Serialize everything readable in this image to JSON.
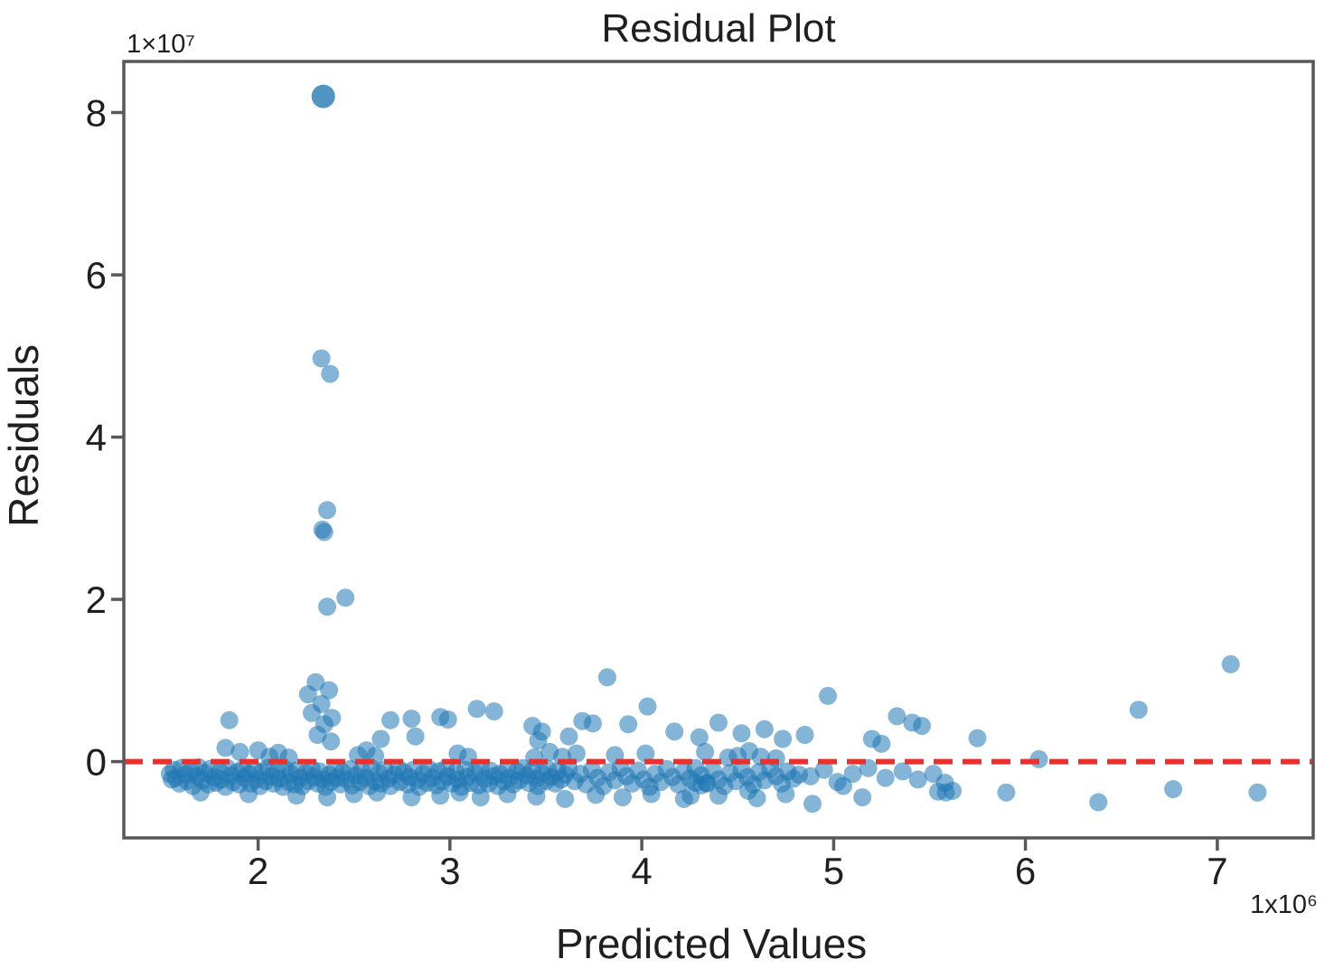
{
  "page": {
    "background": "#ffffff"
  },
  "chart_data": {
    "type": "scatter",
    "title": "Residual Plot",
    "xlabel": "Predicted Values",
    "ylabel": "Residuals",
    "x_scale_note": "1x10⁶",
    "y_scale_note": "1×10⁷",
    "x_ticks": [
      2,
      3,
      4,
      5,
      6,
      7
    ],
    "y_ticks": [
      0,
      2,
      4,
      6,
      8
    ],
    "xlim": [
      1.3,
      7.5
    ],
    "ylim": [
      -0.94,
      8.63
    ],
    "x_unit_multiplier": 1000000,
    "y_unit_multiplier": 10000000,
    "grid": false,
    "legend": "none",
    "point_color": "#1f77b4",
    "point_opacity": 0.55,
    "point_radius": 10,
    "zero_line": {
      "y": 0,
      "color": "#e8322f",
      "style": "dashed",
      "width": 6
    },
    "points": [
      [
        2.34,
        8.2,
        13,
        0.78
      ],
      [
        2.33,
        4.97
      ],
      [
        2.375,
        4.78
      ],
      [
        2.36,
        3.1
      ],
      [
        2.335,
        2.86
      ],
      [
        2.345,
        2.83
      ],
      [
        2.36,
        1.91
      ],
      [
        2.455,
        2.02
      ],
      [
        2.3,
        0.98
      ],
      [
        2.26,
        0.83
      ],
      [
        2.37,
        0.88
      ],
      [
        2.33,
        0.71
      ],
      [
        2.28,
        0.6
      ],
      [
        2.385,
        0.54
      ],
      [
        2.345,
        0.46
      ],
      [
        2.31,
        0.33
      ],
      [
        2.38,
        0.25
      ],
      [
        1.85,
        0.51
      ],
      [
        1.83,
        0.17
      ],
      [
        1.905,
        0.12
      ],
      [
        2.0,
        0.14
      ],
      [
        2.64,
        0.28
      ],
      [
        2.69,
        0.51
      ],
      [
        2.8,
        0.53
      ],
      [
        2.82,
        0.31
      ],
      [
        2.95,
        0.55
      ],
      [
        2.99,
        0.52
      ],
      [
        3.14,
        0.65
      ],
      [
        3.23,
        0.62
      ],
      [
        3.43,
        0.44
      ],
      [
        3.46,
        0.26
      ],
      [
        3.48,
        0.37
      ],
      [
        3.62,
        0.31
      ],
      [
        3.69,
        0.5
      ],
      [
        3.745,
        0.47
      ],
      [
        3.82,
        1.04
      ],
      [
        3.93,
        0.46
      ],
      [
        4.03,
        0.68
      ],
      [
        4.17,
        0.37
      ],
      [
        4.3,
        0.3
      ],
      [
        4.4,
        0.48
      ],
      [
        4.52,
        0.35
      ],
      [
        4.64,
        0.4
      ],
      [
        4.735,
        0.28
      ],
      [
        4.85,
        0.33
      ],
      [
        4.97,
        0.81
      ],
      [
        5.2,
        0.28
      ],
      [
        5.25,
        0.22
      ],
      [
        5.33,
        0.56
      ],
      [
        5.41,
        0.48
      ],
      [
        5.46,
        0.44
      ],
      [
        5.75,
        0.29
      ],
      [
        6.07,
        0.03
      ],
      [
        6.59,
        0.64
      ],
      [
        7.07,
        1.2
      ],
      [
        5.545,
        -0.37
      ],
      [
        5.585,
        -0.38
      ],
      [
        5.62,
        -0.36
      ],
      [
        5.9,
        -0.38
      ],
      [
        6.38,
        -0.5
      ],
      [
        6.77,
        -0.34
      ],
      [
        7.21,
        -0.38
      ],
      [
        3.76,
        -0.41
      ],
      [
        3.9,
        -0.44
      ],
      [
        4.05,
        -0.4
      ],
      [
        4.22,
        -0.46
      ],
      [
        4.255,
        -0.42
      ],
      [
        4.4,
        -0.42
      ],
      [
        4.555,
        -0.36
      ],
      [
        4.6,
        -0.45
      ],
      [
        4.75,
        -0.4
      ],
      [
        4.89,
        -0.52
      ],
      [
        5.05,
        -0.3
      ],
      [
        5.15,
        -0.44
      ],
      [
        4.28,
        -0.26
      ],
      [
        4.31,
        -0.29
      ],
      [
        4.34,
        -0.27
      ],
      [
        1.7,
        -0.38
      ],
      [
        1.95,
        -0.4
      ],
      [
        2.2,
        -0.42
      ],
      [
        2.36,
        -0.44
      ],
      [
        2.5,
        -0.4
      ],
      [
        2.62,
        -0.38
      ],
      [
        2.8,
        -0.44
      ],
      [
        2.95,
        -0.42
      ],
      [
        3.05,
        -0.38
      ],
      [
        3.16,
        -0.44
      ],
      [
        3.3,
        -0.4
      ],
      [
        3.45,
        -0.43
      ],
      [
        3.6,
        -0.46
      ],
      [
        2.06,
        0.06
      ],
      [
        2.105,
        0.11
      ],
      [
        2.16,
        0.05
      ],
      [
        2.52,
        0.08
      ],
      [
        2.565,
        0.14
      ],
      [
        2.61,
        0.07
      ],
      [
        3.04,
        0.1
      ],
      [
        3.095,
        0.06
      ],
      [
        3.44,
        0.05
      ],
      [
        3.52,
        0.12
      ],
      [
        3.585,
        0.06
      ],
      [
        3.66,
        0.1
      ],
      [
        3.86,
        0.08
      ],
      [
        4.02,
        0.1
      ],
      [
        4.33,
        0.12
      ],
      [
        4.45,
        0.05
      ],
      [
        4.5,
        0.07
      ],
      [
        4.56,
        0.13
      ],
      [
        4.62,
        0.06
      ],
      [
        4.7,
        0.04
      ],
      [
        1.54,
        -0.15
      ],
      [
        1.55,
        -0.22
      ],
      [
        1.56,
        -0.1
      ],
      [
        1.57,
        -0.2
      ],
      [
        1.59,
        -0.27
      ],
      [
        1.6,
        -0.08
      ],
      [
        1.62,
        -0.16
      ],
      [
        1.63,
        -0.24
      ],
      [
        1.65,
        -0.11
      ],
      [
        1.66,
        -0.3
      ],
      [
        1.68,
        -0.18
      ],
      [
        1.69,
        -0.07
      ],
      [
        1.71,
        -0.23
      ],
      [
        1.72,
        -0.14
      ],
      [
        1.74,
        -0.28
      ],
      [
        1.75,
        -0.09
      ],
      [
        1.77,
        -0.19
      ],
      [
        1.78,
        -0.26
      ],
      [
        1.8,
        -0.12
      ],
      [
        1.81,
        -0.22
      ],
      [
        1.83,
        -0.31
      ],
      [
        1.84,
        -0.08
      ],
      [
        1.86,
        -0.17
      ],
      [
        1.87,
        -0.25
      ],
      [
        1.89,
        -0.13
      ],
      [
        1.9,
        -0.28
      ],
      [
        1.92,
        -0.09
      ],
      [
        1.93,
        -0.2
      ],
      [
        1.95,
        -0.15
      ],
      [
        1.96,
        -0.27
      ],
      [
        1.98,
        -0.1
      ],
      [
        1.99,
        -0.22
      ],
      [
        2.01,
        -0.3
      ],
      [
        2.02,
        -0.13
      ],
      [
        2.04,
        -0.24
      ],
      [
        2.05,
        -0.08
      ],
      [
        2.07,
        -0.18
      ],
      [
        2.08,
        -0.27
      ],
      [
        2.1,
        -0.12
      ],
      [
        2.11,
        -0.21
      ],
      [
        2.13,
        -0.31
      ],
      [
        2.14,
        -0.09
      ],
      [
        2.16,
        -0.25
      ],
      [
        2.17,
        -0.15
      ],
      [
        2.19,
        -0.28
      ],
      [
        2.2,
        -0.11
      ],
      [
        2.22,
        -0.2
      ],
      [
        2.23,
        -0.3
      ],
      [
        2.25,
        -0.14
      ],
      [
        2.26,
        -0.24
      ],
      [
        2.28,
        -0.09
      ],
      [
        2.29,
        -0.19
      ],
      [
        2.31,
        -0.27
      ],
      [
        2.32,
        -0.12
      ],
      [
        2.34,
        -0.22
      ],
      [
        2.35,
        -0.31
      ],
      [
        2.37,
        -0.16
      ],
      [
        2.38,
        -0.25
      ],
      [
        2.4,
        -0.1
      ],
      [
        2.41,
        -0.2
      ],
      [
        2.43,
        -0.28
      ],
      [
        2.44,
        -0.13
      ],
      [
        2.46,
        -0.22
      ],
      [
        2.48,
        -0.09
      ],
      [
        2.49,
        -0.29
      ],
      [
        2.51,
        -0.17
      ],
      [
        2.53,
        -0.25
      ],
      [
        2.54,
        -0.11
      ],
      [
        2.56,
        -0.2
      ],
      [
        2.58,
        -0.3
      ],
      [
        2.59,
        -0.08
      ],
      [
        2.61,
        -0.24
      ],
      [
        2.63,
        -0.14
      ],
      [
        2.64,
        -0.27
      ],
      [
        2.66,
        -0.1
      ],
      [
        2.68,
        -0.21
      ],
      [
        2.69,
        -0.3
      ],
      [
        2.71,
        -0.16
      ],
      [
        2.73,
        -0.08
      ],
      [
        2.74,
        -0.25
      ],
      [
        2.76,
        -0.13
      ],
      [
        2.78,
        -0.28
      ],
      [
        2.79,
        -0.19
      ],
      [
        2.81,
        -0.1
      ],
      [
        2.83,
        -0.23
      ],
      [
        2.84,
        -0.31
      ],
      [
        2.86,
        -0.15
      ],
      [
        2.88,
        -0.26
      ],
      [
        2.89,
        -0.09
      ],
      [
        2.91,
        -0.2
      ],
      [
        2.93,
        -0.29
      ],
      [
        2.94,
        -0.12
      ],
      [
        2.96,
        -0.24
      ],
      [
        2.98,
        -0.08
      ],
      [
        2.99,
        -0.18
      ],
      [
        3.01,
        -0.27
      ],
      [
        3.03,
        -0.13
      ],
      [
        3.04,
        -0.22
      ],
      [
        3.06,
        -0.31
      ],
      [
        3.08,
        -0.1
      ],
      [
        3.09,
        -0.19
      ],
      [
        3.11,
        -0.26
      ],
      [
        3.13,
        -0.14
      ],
      [
        3.15,
        -0.29
      ],
      [
        3.16,
        -0.08
      ],
      [
        3.18,
        -0.21
      ],
      [
        3.2,
        -0.27
      ],
      [
        3.21,
        -0.11
      ],
      [
        3.23,
        -0.18
      ],
      [
        3.25,
        -0.3
      ],
      [
        3.26,
        -0.15
      ],
      [
        3.28,
        -0.24
      ],
      [
        3.3,
        -0.09
      ],
      [
        3.31,
        -0.2
      ],
      [
        3.33,
        -0.28
      ],
      [
        3.35,
        -0.12
      ],
      [
        3.36,
        -0.23
      ],
      [
        3.38,
        -0.08
      ],
      [
        3.4,
        -0.17
      ],
      [
        3.41,
        -0.26
      ],
      [
        3.43,
        -0.11
      ],
      [
        3.45,
        -0.21
      ],
      [
        3.46,
        -0.3
      ],
      [
        3.48,
        -0.14
      ],
      [
        3.5,
        -0.24
      ],
      [
        3.51,
        -0.09
      ],
      [
        3.53,
        -0.19
      ],
      [
        3.55,
        -0.27
      ],
      [
        3.56,
        -0.12
      ],
      [
        3.58,
        -0.22
      ],
      [
        3.6,
        -0.16
      ],
      [
        3.62,
        -0.09
      ],
      [
        3.65,
        -0.24
      ],
      [
        3.68,
        -0.15
      ],
      [
        3.71,
        -0.28
      ],
      [
        3.74,
        -0.1
      ],
      [
        3.77,
        -0.2
      ],
      [
        3.8,
        -0.3
      ],
      [
        3.83,
        -0.13
      ],
      [
        3.86,
        -0.23
      ],
      [
        3.89,
        -0.08
      ],
      [
        3.92,
        -0.18
      ],
      [
        3.95,
        -0.27
      ],
      [
        3.98,
        -0.11
      ],
      [
        4.01,
        -0.22
      ],
      [
        4.04,
        -0.31
      ],
      [
        4.07,
        -0.15
      ],
      [
        4.1,
        -0.25
      ],
      [
        4.13,
        -0.09
      ],
      [
        4.16,
        -0.19
      ],
      [
        4.19,
        -0.28
      ],
      [
        4.22,
        -0.12
      ],
      [
        4.25,
        -0.21
      ],
      [
        4.28,
        -0.08
      ],
      [
        4.31,
        -0.17
      ],
      [
        4.34,
        -0.26
      ],
      [
        4.37,
        -0.11
      ],
      [
        4.4,
        -0.22
      ],
      [
        4.43,
        -0.3
      ],
      [
        4.46,
        -0.14
      ],
      [
        4.49,
        -0.24
      ],
      [
        4.52,
        -0.1
      ],
      [
        4.55,
        -0.19
      ],
      [
        4.58,
        -0.28
      ],
      [
        4.61,
        -0.13
      ],
      [
        4.64,
        -0.23
      ],
      [
        4.67,
        -0.09
      ],
      [
        4.7,
        -0.18
      ],
      [
        4.73,
        -0.27
      ],
      [
        4.76,
        -0.12
      ],
      [
        4.79,
        -0.21
      ],
      [
        4.82,
        -0.16
      ],
      [
        4.88,
        -0.18
      ],
      [
        4.95,
        -0.1
      ],
      [
        5.02,
        -0.25
      ],
      [
        5.1,
        -0.15
      ],
      [
        5.18,
        -0.08
      ],
      [
        5.27,
        -0.2
      ],
      [
        5.36,
        -0.12
      ],
      [
        5.44,
        -0.22
      ],
      [
        5.52,
        -0.15
      ],
      [
        5.58,
        -0.26
      ]
    ]
  }
}
